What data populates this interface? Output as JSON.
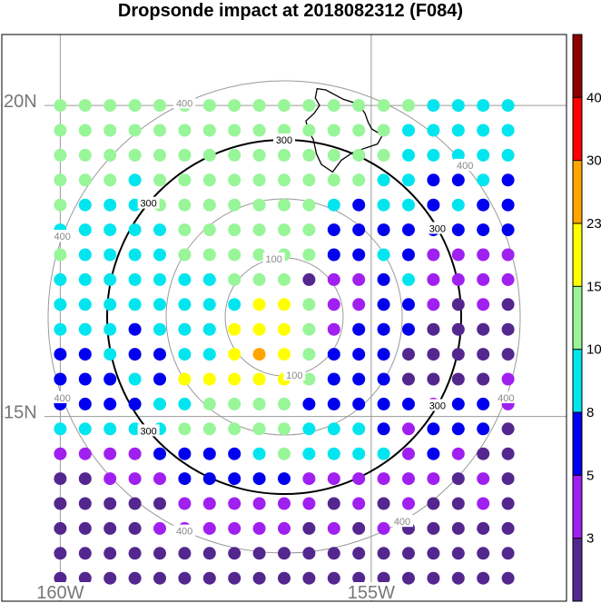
{
  "title": "Dropsonde impact at 2018082312 (F084)",
  "colors": {
    "background": "#ffffff",
    "graticule": "#9a9a9a",
    "ring_thin": "#999999",
    "ring_bold": "#000000",
    "coast": "#000000"
  },
  "chart_data": {
    "type": "scatter",
    "map": {
      "lat_range": [
        14.0,
        21.0
      ],
      "lon_range": [
        -160.5,
        -153.8
      ],
      "grid_lats": [
        15,
        20
      ],
      "grid_lons": [
        -160,
        -155
      ],
      "lat_labels": [
        "15N",
        "20N"
      ],
      "lon_labels": [
        "160W",
        "155W"
      ]
    },
    "range_rings": [
      {
        "value": 100,
        "label": "100",
        "bold": false
      },
      {
        "value": 200,
        "label": "",
        "bold": false
      },
      {
        "value": 300,
        "label": "300",
        "bold": true
      },
      {
        "value": 400,
        "label": "400",
        "bold": false
      }
    ],
    "colorbar": {
      "bounds": [
        3,
        5,
        8,
        10,
        15,
        23,
        30,
        40
      ],
      "labels": [
        "3",
        "5",
        "8",
        "10",
        "15",
        "23",
        "30",
        "40"
      ],
      "colors": [
        "#54278f",
        "#a020f0",
        "#0000ee",
        "#00e5ee",
        "#98f598",
        "#ffff00",
        "#ffa500",
        "#ff0000",
        "#8b0000"
      ]
    },
    "grid_points": {
      "lats_from_top": [
        20.0,
        19.6,
        19.2,
        18.8,
        18.4,
        18.0,
        17.6,
        17.2,
        16.8,
        16.4,
        16.0,
        15.6,
        15.2,
        14.8,
        14.4,
        14.0,
        13.6,
        13.2,
        12.8,
        12.4
      ],
      "lons_from_left": [
        -160.0,
        -159.6,
        -159.2,
        -158.8,
        -158.4,
        -158.0,
        -157.6,
        -157.2,
        -156.8,
        -156.4,
        -156.0,
        -155.6,
        -155.2,
        -154.8,
        -154.4,
        -154.0,
        -153.6,
        -153.2,
        -152.8
      ],
      "class_legend": "0=<3, 1=3-5, 2=5-8, 3=8-10, 4=10-15, 5=15-23, 6=23-30",
      "classes": [
        "4444444444444443333",
        "4444444444444433333",
        "4444444444444433333",
        "4443444444444332232",
        "4333444444432332322",
        "3333344444422222222",
        "4333344444422321111",
        "3333333444011231111",
        "3333333355411221010",
        "3332333555412220000",
        "2232233565422200000",
        "2223255555422200001",
        "2222334444222221221",
        "3333344444333212220",
        "1111222234333312100",
        "0011122222111111010",
        "0000011111101010010",
        "0000111111010100000",
        "0000000000000000000",
        "0000000000000000000"
      ]
    }
  }
}
